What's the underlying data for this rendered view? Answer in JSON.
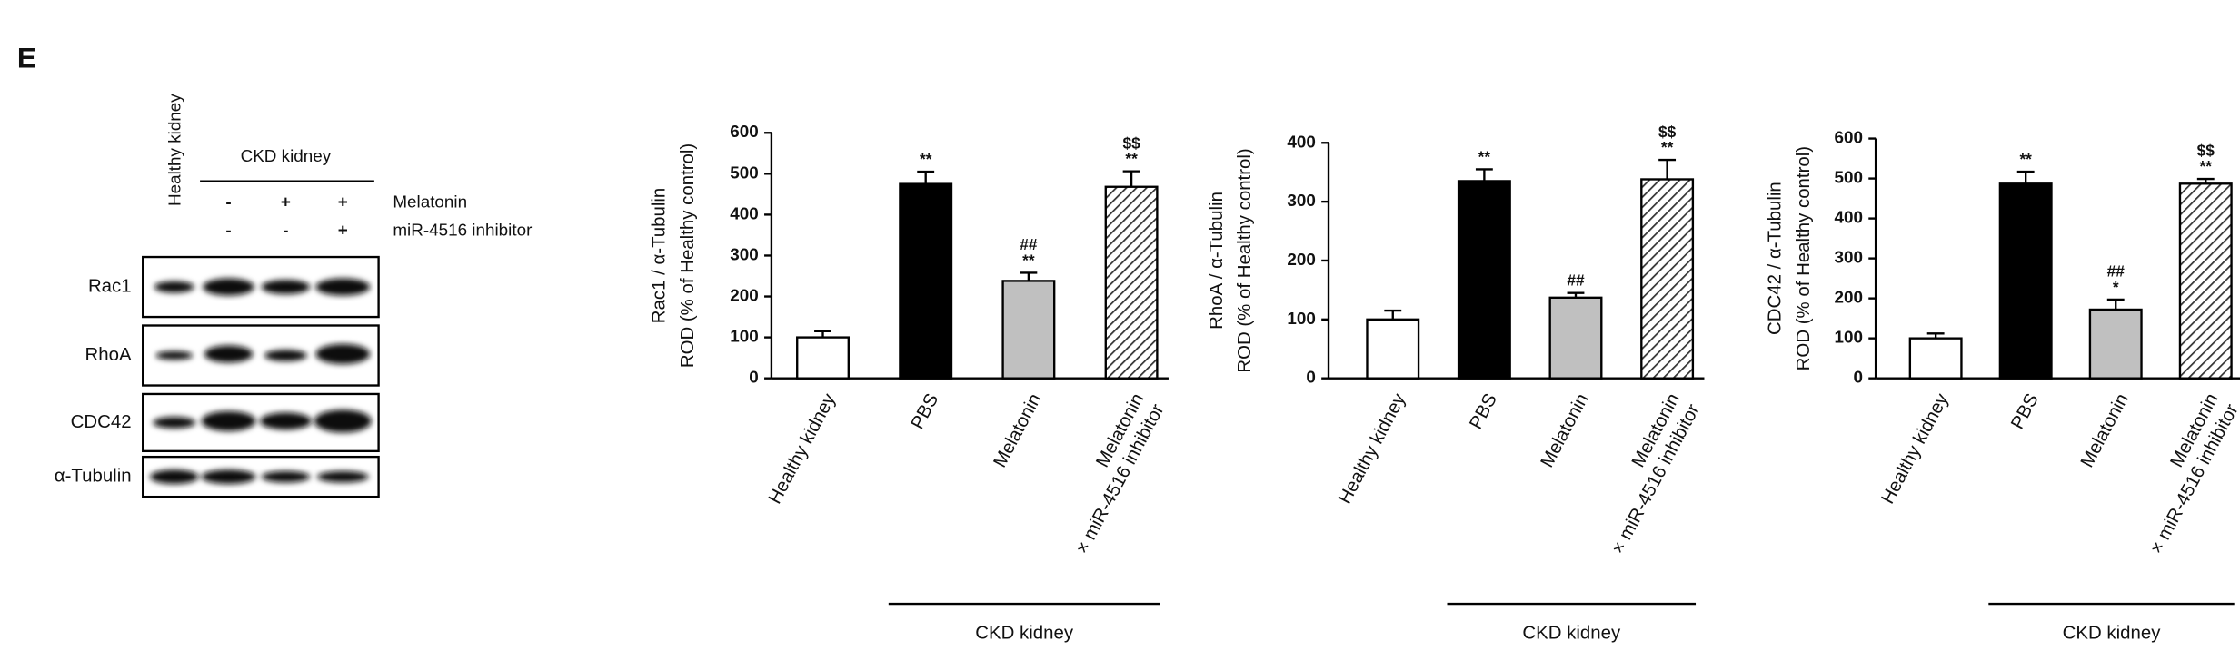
{
  "panel_label": "E",
  "blot": {
    "lane_header": "Healthy kidney",
    "group_header": "CKD kidney",
    "treatments": [
      {
        "name": "Melatonin",
        "signs": [
          "-",
          "+",
          "+"
        ]
      },
      {
        "name": "miR-4516 inhibitor",
        "signs": [
          "-",
          "-",
          "+"
        ]
      }
    ],
    "rows": [
      "Rac1",
      "RhoA",
      "CDC42",
      "α-Tubulin"
    ]
  },
  "chart_data": [
    {
      "type": "bar",
      "ylabel": [
        "Rac1 / α-Tubulin",
        "ROD (% of Healthy control)"
      ],
      "categories": [
        "Healthy kidney",
        "PBS",
        "Melatonin",
        "Melatonin\n× miR-4516 inhibitor"
      ],
      "values": [
        100,
        475,
        238,
        468
      ],
      "errors": [
        15,
        30,
        20,
        38
      ],
      "colors": [
        "#ffffff",
        "#000000",
        "#c0c0c0",
        "#ffffff"
      ],
      "hatched": [
        false,
        false,
        false,
        true
      ],
      "annotations": [
        [],
        [
          "**"
        ],
        [
          "##",
          "**"
        ],
        [
          "$$",
          "**"
        ]
      ],
      "group_label": "CKD kidney",
      "ylim": [
        0,
        600
      ],
      "yticks": [
        0,
        100,
        200,
        300,
        400,
        500,
        600
      ]
    },
    {
      "type": "bar",
      "ylabel": [
        "RhoA / α-Tubulin",
        "ROD (% of Healthy control)"
      ],
      "categories": [
        "Healthy kidney",
        "PBS",
        "Melatonin",
        "Melatonin\n× miR-4516 inhibitor"
      ],
      "values": [
        100,
        335,
        137,
        338
      ],
      "errors": [
        15,
        20,
        8,
        33
      ],
      "colors": [
        "#ffffff",
        "#000000",
        "#c0c0c0",
        "#ffffff"
      ],
      "hatched": [
        false,
        false,
        false,
        true
      ],
      "annotations": [
        [],
        [
          "**"
        ],
        [
          "##"
        ],
        [
          "$$",
          "**"
        ]
      ],
      "group_label": "CKD kidney",
      "ylim": [
        0,
        400
      ],
      "yticks": [
        0,
        100,
        200,
        300,
        400
      ]
    },
    {
      "type": "bar",
      "ylabel": [
        "CDC42 / α-Tubulin",
        "ROD (% of Healthy control)"
      ],
      "categories": [
        "Healthy kidney",
        "PBS",
        "Melatonin",
        "Melatonin\n× miR-4516 inhibitor"
      ],
      "values": [
        100,
        487,
        172,
        487
      ],
      "errors": [
        12,
        30,
        25,
        12
      ],
      "colors": [
        "#ffffff",
        "#000000",
        "#c0c0c0",
        "#ffffff"
      ],
      "hatched": [
        false,
        false,
        false,
        true
      ],
      "annotations": [
        [],
        [
          "**"
        ],
        [
          "##",
          "*"
        ],
        [
          "$$",
          "**"
        ]
      ],
      "group_label": "CKD kidney",
      "ylim": [
        0,
        600
      ],
      "yticks": [
        0,
        100,
        200,
        300,
        400,
        500,
        600
      ]
    }
  ]
}
